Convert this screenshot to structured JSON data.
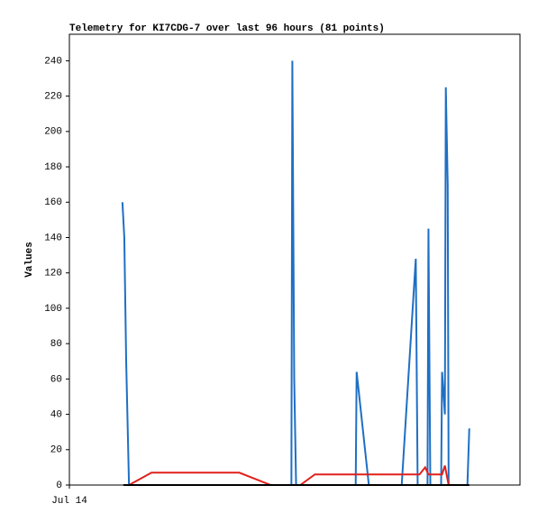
{
  "chart_data": {
    "type": "line",
    "title": "Telemetry for KI7CDG-7 over last 96 hours (81 points)",
    "ylabel": "Values",
    "xlim": [
      0,
      96
    ],
    "xticks": [
      {
        "value": 0,
        "label": "Jul 14"
      }
    ],
    "ylim": [
      0,
      255
    ],
    "yticks": [
      0,
      20,
      40,
      60,
      80,
      100,
      120,
      140,
      160,
      180,
      200,
      220,
      240
    ],
    "series": [
      {
        "color": "#1f6fc4",
        "x": [
          11.3,
          11.7,
          12.1,
          12.7,
          47.3,
          47.5,
          47.9,
          48.3,
          61.0,
          61.2,
          63.8,
          70.8,
          73.8,
          74.2,
          76.3,
          76.5,
          76.9,
          79.2,
          79.4,
          80.0,
          80.2,
          80.6,
          80.8,
          84.8,
          85.2
        ],
        "values": [
          160,
          140,
          70,
          0,
          0,
          240,
          60,
          0,
          0,
          64,
          0,
          0,
          128,
          0,
          0,
          145,
          0,
          0,
          64,
          40,
          225,
          170,
          0,
          0,
          32
        ]
      },
      {
        "color": "#e0201b",
        "x": [
          12.7,
          17.5,
          36.2,
          42.9,
          49.2,
          52.3,
          74.6,
          75.8,
          76.5,
          79.4,
          80.0,
          80.8
        ],
        "values": [
          0,
          7,
          7,
          0,
          0,
          6,
          6,
          10,
          6,
          6,
          11,
          0
        ]
      },
      {
        "color": "#000000",
        "x": [
          11.5,
          85.2
        ],
        "values": [
          0,
          0
        ]
      }
    ]
  }
}
